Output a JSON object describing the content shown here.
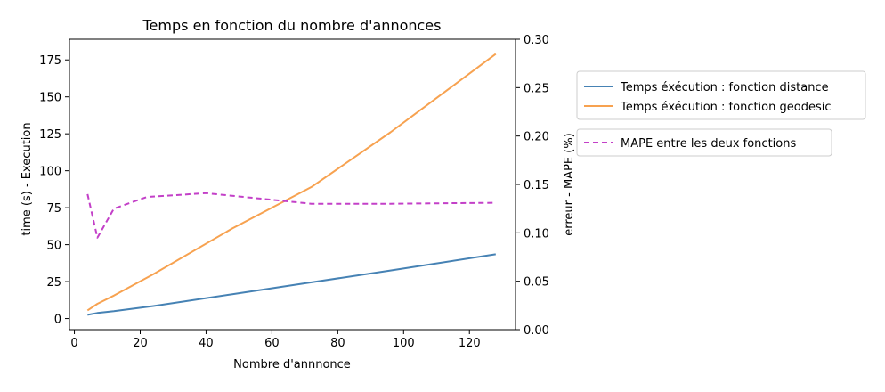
{
  "chart_data": {
    "type": "line",
    "title": "Temps en fonction du nombre d'annonces",
    "xlabel": "Nombre d'annnonce",
    "ylabel": "time (s) - Execution",
    "y2label": "erreur - MAPE (%)",
    "xlim": [
      -1.5,
      134
    ],
    "ylim": [
      -7.5,
      189
    ],
    "y2lim": [
      0,
      0.3
    ],
    "x_ticks": [
      0,
      20,
      40,
      60,
      80,
      100,
      120
    ],
    "y_ticks": [
      0,
      25,
      50,
      75,
      100,
      125,
      150,
      175
    ],
    "y2_ticks": [
      "0.00",
      "0.05",
      "0.10",
      "0.15",
      "0.20",
      "0.25",
      "0.30"
    ],
    "grid": false,
    "series": [
      {
        "name": "Temps éxécution : fonction distance",
        "axis": "left",
        "color": "#4682b4",
        "style": "solid",
        "x": [
          4,
          7,
          12,
          24,
          48,
          72,
          96,
          128
        ],
        "values": [
          2.5,
          3.8,
          5.0,
          8.5,
          16.5,
          24.5,
          32.5,
          43.5
        ]
      },
      {
        "name": "Temps éxécution : fonction geodesic",
        "axis": "left",
        "color": "#f7a250",
        "style": "solid",
        "x": [
          4,
          7,
          12,
          24,
          48,
          72,
          96,
          128
        ],
        "values": [
          5.5,
          10.0,
          15.5,
          30.0,
          61.0,
          89.0,
          126.0,
          179.0
        ]
      },
      {
        "name": "MAPE entre les deux fonctions",
        "axis": "right",
        "color": "#c340c8",
        "style": "dashed",
        "x": [
          4,
          7,
          12,
          22,
          40,
          72,
          96,
          128
        ],
        "values": [
          0.14,
          0.095,
          0.125,
          0.137,
          0.141,
          0.13,
          0.13,
          0.131
        ]
      }
    ],
    "legend_placement": "right, outside plot"
  }
}
